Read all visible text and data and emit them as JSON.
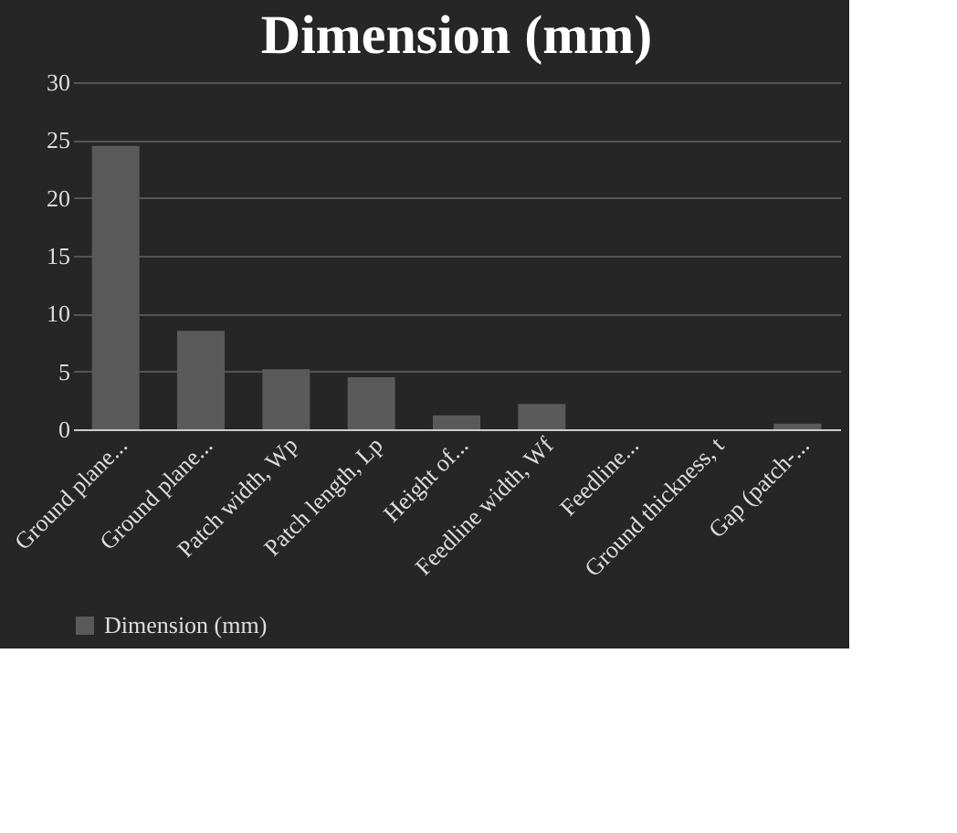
{
  "chart_data": {
    "type": "bar",
    "title": "Dimension (mm)",
    "categories": [
      "Ground plane...",
      "Ground plane...",
      "Patch width, Wp",
      "Patch length, Lp",
      "Height of...",
      "Feedline width, Wf",
      "Feedline...",
      "Ground thickness, t",
      "Gap (patch-..."
    ],
    "series": [
      {
        "name": "Dimension (mm)",
        "color": "#5a5a5a",
        "values": [
          24.5,
          8.5,
          5.2,
          4.5,
          1.2,
          2.2,
          0,
          0,
          0.5
        ]
      }
    ],
    "ylim": [
      0,
      30
    ],
    "yticks": [
      0,
      5,
      10,
      15,
      20,
      25,
      30
    ],
    "grid": "y",
    "legend": "bottom"
  }
}
